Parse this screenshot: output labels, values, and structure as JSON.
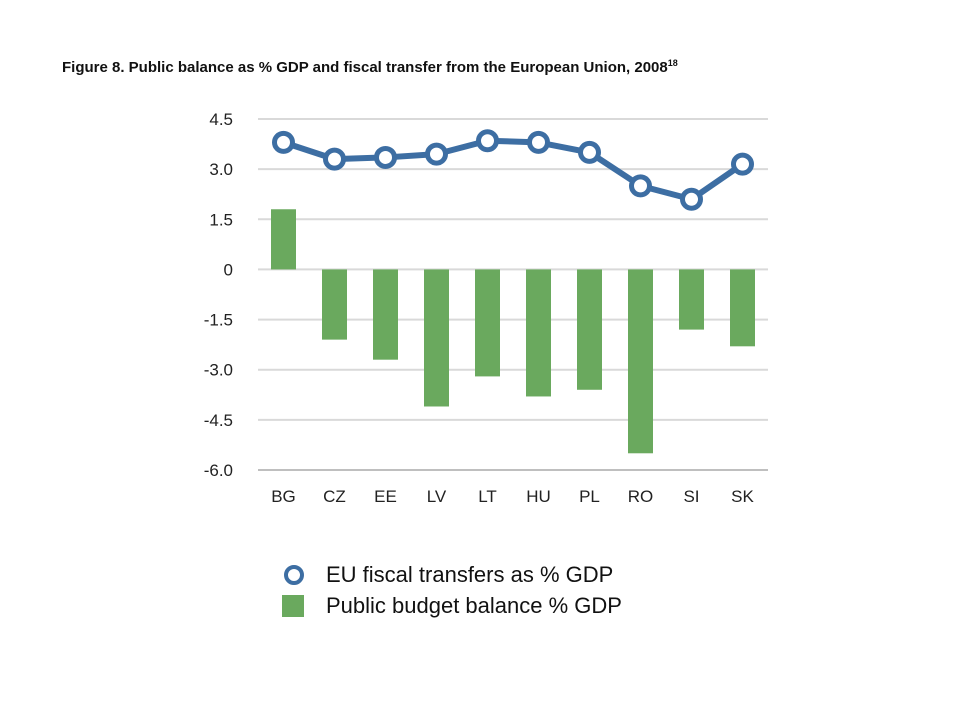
{
  "figure": {
    "title": "Figure 8. Public balance as % GDP and fiscal transfer from the European Union, 2008",
    "footnote": "18"
  },
  "colors": {
    "line": "#3d6ea3",
    "bar": "#6aa95e",
    "grid": "#d9d9d9"
  },
  "chart_data": {
    "type": "bar",
    "categories": [
      "BG",
      "CZ",
      "EE",
      "LV",
      "LT",
      "HU",
      "PL",
      "RO",
      "SI",
      "SK"
    ],
    "series": [
      {
        "name": "EU fiscal transfers as % GDP",
        "type": "line",
        "values": [
          3.8,
          3.3,
          3.35,
          3.45,
          3.85,
          3.8,
          3.5,
          2.5,
          2.1,
          3.15
        ]
      },
      {
        "name": "Public budget balance % GDP",
        "type": "bar",
        "values": [
          1.8,
          -2.1,
          -2.7,
          -4.1,
          -3.2,
          -3.8,
          -3.6,
          -5.5,
          -1.8,
          -2.3
        ]
      }
    ],
    "yticks": [
      "4.5",
      "3.0",
      "1.5",
      "0",
      "-1.5",
      "-3.0",
      "-4.5",
      "-6.0"
    ],
    "ylim": [
      -6.0,
      4.5
    ],
    "grid": true,
    "legend_position": "bottom"
  }
}
